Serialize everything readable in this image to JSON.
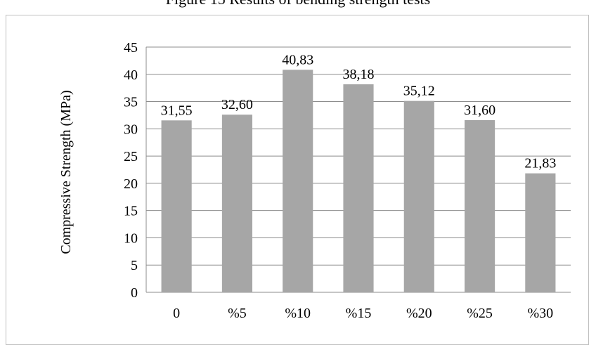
{
  "page": {
    "title": "Figure 15 Results of bending strength tests"
  },
  "chart_data": {
    "type": "bar",
    "categories": [
      "0",
      "%5",
      "%10",
      "%15",
      "%20",
      "%25",
      "%30"
    ],
    "values": [
      31.55,
      32.6,
      40.83,
      38.18,
      35.12,
      31.6,
      21.83
    ],
    "data_labels": [
      "31,55",
      "32,60",
      "40,83",
      "38,18",
      "35,12",
      "31,60",
      "21,83"
    ],
    "ylabel": "Compressive Strength (MPa)",
    "xlabel": "",
    "ylim": [
      0,
      45
    ],
    "yticks": [
      0,
      5,
      10,
      15,
      20,
      25,
      30,
      35,
      40,
      45
    ],
    "grid": true,
    "legend": "none",
    "colors": {
      "bar": "#a6a6a6",
      "grid": "#8c8c8c",
      "axis": "#8c8c8c"
    }
  }
}
